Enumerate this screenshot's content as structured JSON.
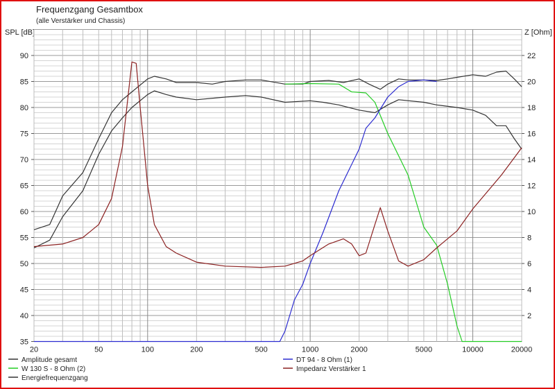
{
  "chart_data": {
    "type": "line",
    "title": "Frequenzgang Gesamtbox",
    "subtitle": "(alle Verstärker und Chassis)",
    "ylabel": "SPL [dB]",
    "y2label": "Z [Ohm]",
    "xscale": "log",
    "xlim": [
      20,
      20000
    ],
    "ylim": [
      35,
      95
    ],
    "y2lim": [
      0,
      24
    ],
    "xticks": [
      20,
      50,
      100,
      200,
      500,
      1000,
      2000,
      5000,
      10000,
      20000
    ],
    "yticks": [
      35,
      40,
      45,
      50,
      55,
      60,
      65,
      70,
      75,
      80,
      85,
      90
    ],
    "y2ticks": [
      2,
      4,
      6,
      8,
      10,
      12,
      14,
      16,
      18,
      20,
      22
    ],
    "grid": true,
    "legend_position": "bottom",
    "series": [
      {
        "name": "Amplitude gesamt",
        "color": "#333333",
        "axis": "left",
        "x": [
          20,
          25,
          30,
          40,
          50,
          60,
          70,
          80,
          100,
          110,
          130,
          150,
          200,
          250,
          300,
          400,
          500,
          700,
          900,
          1000,
          1300,
          1600,
          2000,
          2300,
          2700,
          3000,
          3500,
          4000,
          5000,
          6000,
          7000,
          8000,
          10000,
          12000,
          14000,
          16000,
          18000,
          20000
        ],
        "y": [
          56.5,
          57.5,
          63,
          67.5,
          74,
          79,
          81.5,
          83,
          85.5,
          86,
          85.5,
          84.8,
          84.8,
          84.5,
          85,
          85.3,
          85.3,
          84.5,
          84.5,
          85,
          85.2,
          84.8,
          85.5,
          84.5,
          83.5,
          84.5,
          85.5,
          85.3,
          85.3,
          85.2,
          85.5,
          85.8,
          86.3,
          86,
          86.8,
          87,
          85.5,
          84
        ]
      },
      {
        "name": "W 130 S - 8 Ohm (2)",
        "color": "#22cc22",
        "axis": "left",
        "x": [
          700,
          1000,
          1500,
          1800,
          2200,
          2500,
          3000,
          4000,
          5000,
          6000,
          7000,
          8000,
          8600,
          10000,
          20000
        ],
        "y": [
          84.5,
          84.6,
          84.5,
          83,
          82.8,
          81,
          75,
          67,
          57,
          53.5,
          46,
          38,
          35,
          35,
          35
        ]
      },
      {
        "name": "Energiefrequenzgang",
        "color": "#333333",
        "axis": "left",
        "x": [
          20,
          25,
          30,
          40,
          50,
          60,
          70,
          80,
          100,
          110,
          130,
          150,
          200,
          300,
          400,
          500,
          700,
          1000,
          1200,
          1500,
          2000,
          2500,
          3000,
          3500,
          5000,
          6000,
          8000,
          10000,
          12000,
          14000,
          16000,
          18000,
          20000
        ],
        "y": [
          53,
          54.5,
          59,
          64,
          71,
          75.5,
          78,
          80,
          82.5,
          83.2,
          82.5,
          82,
          81.5,
          82,
          82.3,
          82,
          81,
          81.3,
          81,
          80.5,
          79.5,
          79,
          80.5,
          81.5,
          81,
          80.5,
          80,
          79.5,
          78.5,
          76.5,
          76.5,
          74,
          72
        ]
      },
      {
        "name": "DT 94 - 8 Ohm (1)",
        "color": "#2a2ad0",
        "axis": "left",
        "x": [
          20,
          650,
          700,
          800,
          900,
          1000,
          1200,
          1500,
          2000,
          2200,
          2500,
          3000,
          3500,
          4000,
          5000,
          6000
        ],
        "y": [
          35,
          35,
          37,
          43,
          46,
          50,
          56,
          64,
          72,
          76,
          78,
          82,
          84,
          85,
          85.3,
          85
        ]
      },
      {
        "name": "Impedanz Verstärker 1",
        "color": "#8b2020",
        "axis": "right",
        "x": [
          20,
          30,
          40,
          50,
          60,
          70,
          80,
          85,
          90,
          100,
          110,
          130,
          150,
          200,
          300,
          500,
          700,
          900,
          1000,
          1300,
          1600,
          1800,
          2000,
          2200,
          2500,
          2700,
          3000,
          3500,
          4000,
          5000,
          6000,
          8000,
          10000,
          15000,
          20000
        ],
        "y": [
          7.3,
          7.5,
          8,
          9,
          11,
          15,
          21.5,
          21.4,
          18,
          12,
          9,
          7.3,
          6.8,
          6.1,
          5.8,
          5.7,
          5.8,
          6.2,
          6.6,
          7.5,
          7.9,
          7.5,
          6.6,
          6.8,
          9,
          10.3,
          8.5,
          6.2,
          5.8,
          6.3,
          7.2,
          8.5,
          10.2,
          12.8,
          14.9
        ]
      }
    ],
    "legend": [
      "Amplitude gesamt",
      "W 130 S - 8 Ohm (2)",
      "Energiefrequenzgang",
      "DT 94 - 8 Ohm (1)",
      "Impedanz Verstärker 1"
    ]
  }
}
